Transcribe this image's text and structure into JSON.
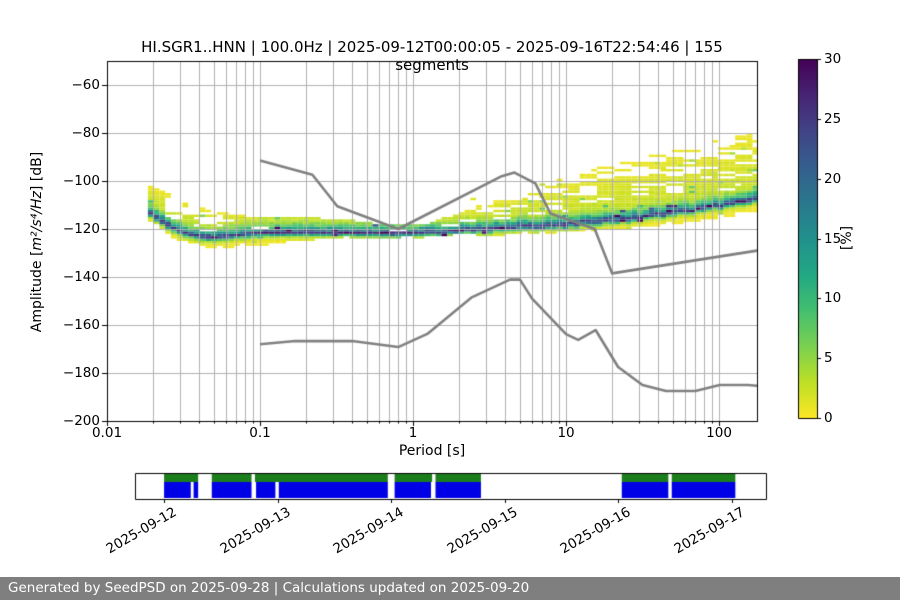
{
  "title": "HI.SGR1..HNN | 100.0Hz | 2025-09-12T00:00:05 - 2025-09-16T22:54:46 | 155 segments",
  "footer": "Generated by SeedPSD on 2025-09-28 | Calculations updated on 2025-09-20",
  "axes": {
    "xlabel": "Period [s]",
    "ylabel_prefix": "Amplitude [",
    "ylabel_math": "m²/s⁴/Hz",
    "ylabel_suffix": "] [dB]",
    "xtick_values": [
      0.01,
      0.1,
      1,
      10,
      100
    ],
    "xtick_labels": [
      "0.01",
      "0.1",
      "1",
      "10",
      "100"
    ],
    "ytick_values": [
      -60,
      -80,
      -100,
      -120,
      -140,
      -160,
      -180,
      -200
    ],
    "ytick_labels": [
      "−60",
      "−80",
      "−100",
      "−120",
      "−140",
      "−160",
      "−180",
      "−200"
    ],
    "grid_color": "#b0b0b0"
  },
  "colorbar": {
    "label": "[%]",
    "min": 0,
    "max": 30,
    "ticks": [
      0,
      5,
      10,
      15,
      20,
      25,
      30
    ],
    "colormap": "viridis_r",
    "viridis_stops": [
      "#440154",
      "#482475",
      "#414487",
      "#355f8d",
      "#2a788e",
      "#21918c",
      "#22a884",
      "#44bf70",
      "#7ad151",
      "#bddf26",
      "#fde725"
    ]
  },
  "chart_data": {
    "type": "heatmap",
    "title": "HI.SGR1..HNN | 100.0Hz | 2025-09-12T00:00:05 - 2025-09-16T22:54:46 | 155 segments",
    "xlabel": "Period [s]",
    "ylabel": "Amplitude [m²/s⁴/Hz] [dB]",
    "xscale": "log",
    "xlim": [
      0.01,
      177
    ],
    "ylim": [
      -200,
      -50
    ],
    "value_unit": "%",
    "value_range": [
      0,
      30
    ],
    "num_segments": 155,
    "histogram": {
      "period_start": 0.0185,
      "bins_per_octave": 8,
      "db_bin_width": 1,
      "mode_percent_max": 28.5,
      "band": {
        "periods": [
          0.0185,
          0.022,
          0.026,
          0.032,
          0.04,
          0.05,
          0.07,
          0.1,
          0.15,
          0.22,
          0.35,
          0.55,
          0.8,
          1.2,
          1.8,
          2.6,
          4.0,
          6.0,
          9.0,
          14,
          22,
          35,
          55,
          90,
          140,
          177
        ],
        "top_db": [
          -102.5,
          -104,
          -106.5,
          -109,
          -111.5,
          -113,
          -114.5,
          -115.5,
          -116,
          -115.5,
          -116.5,
          -118,
          -119,
          -118.5,
          -115,
          -111,
          -107,
          -103,
          -99.5,
          -96,
          -93,
          -90,
          -87,
          -84,
          -81.5,
          -80
        ],
        "mode_db": [
          -113,
          -116.5,
          -119.5,
          -122,
          -123.5,
          -124,
          -123,
          -122,
          -121.8,
          -121.8,
          -121.9,
          -122.2,
          -122.3,
          -121.8,
          -121.2,
          -120.7,
          -120,
          -119.3,
          -118.6,
          -117.6,
          -116.4,
          -115,
          -113.3,
          -111.2,
          -109,
          -107.5
        ],
        "bottom_db": [
          -117,
          -120.5,
          -123.5,
          -126,
          -127.5,
          -128.5,
          -128,
          -127.5,
          -126,
          -125,
          -124.5,
          -124.5,
          -124.5,
          -124,
          -123.5,
          -123.2,
          -123,
          -122.5,
          -122,
          -121.3,
          -120.5,
          -119.5,
          -118.2,
          -116.5,
          -114.5,
          -113
        ]
      }
    },
    "noise_models": {
      "color": "#808080",
      "nhnm": [
        [
          0.1,
          -91.5
        ],
        [
          0.22,
          -97.4
        ],
        [
          0.32,
          -110.5
        ],
        [
          0.8,
          -120.0
        ],
        [
          3.8,
          -98.0
        ],
        [
          4.6,
          -96.5
        ],
        [
          6.3,
          -101.0
        ],
        [
          7.9,
          -113.5
        ],
        [
          15.4,
          -120.0
        ],
        [
          20.0,
          -138.5
        ],
        [
          177,
          -129.0
        ]
      ],
      "nlnm": [
        [
          0.1,
          -168.0
        ],
        [
          0.17,
          -166.7
        ],
        [
          0.4,
          -166.7
        ],
        [
          0.8,
          -169.2
        ],
        [
          1.24,
          -163.7
        ],
        [
          2.4,
          -148.6
        ],
        [
          4.3,
          -141.1
        ],
        [
          5.0,
          -141.1
        ],
        [
          6.0,
          -149.0
        ],
        [
          10.0,
          -163.8
        ],
        [
          12.0,
          -166.2
        ],
        [
          15.6,
          -162.1
        ],
        [
          21.9,
          -177.5
        ],
        [
          31.6,
          -185.0
        ],
        [
          45.0,
          -187.5
        ],
        [
          70.0,
          -187.5
        ],
        [
          101.0,
          -185.0
        ],
        [
          154.0,
          -185.0
        ],
        [
          177,
          -185.3
        ]
      ]
    }
  },
  "timeline": {
    "date_labels": [
      "2025-09-12",
      "2025-09-13",
      "2025-09-14",
      "2025-09-15",
      "2025-09-16",
      "2025-09-17"
    ],
    "day_range": [
      -0.256,
      5.3
    ],
    "coverage_color": "#1b7e1b",
    "data_color": "#0000e6",
    "coverage_segments_days": [
      [
        0,
        0.3
      ],
      [
        0.42,
        0.77
      ],
      [
        0.8,
        1.97
      ],
      [
        2.03,
        2.36
      ],
      [
        2.39,
        2.79
      ],
      [
        4.03,
        4.44
      ],
      [
        4.47,
        5.03
      ]
    ],
    "data_segments_days": [
      [
        0,
        0.235
      ],
      [
        0.26,
        0.3
      ],
      [
        0.42,
        0.77
      ],
      [
        0.81,
        0.98
      ],
      [
        1.01,
        1.97
      ],
      [
        2.03,
        2.35
      ],
      [
        2.39,
        2.79
      ],
      [
        4.03,
        4.44
      ],
      [
        4.47,
        5.03
      ]
    ]
  }
}
